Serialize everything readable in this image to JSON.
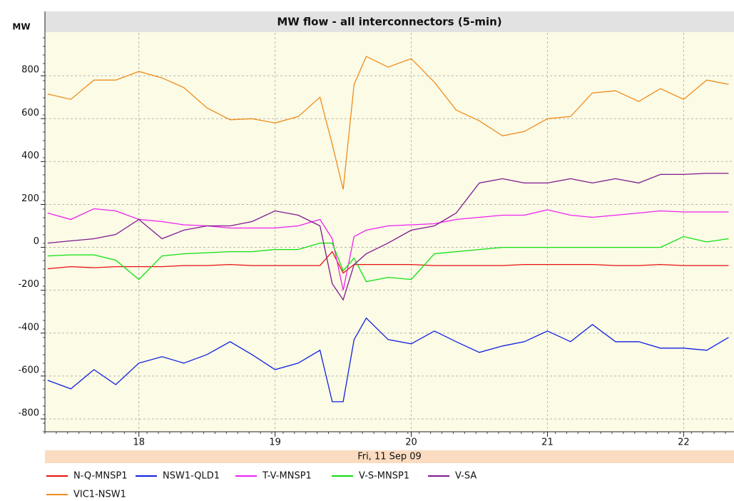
{
  "chart_data": {
    "type": "line",
    "title": "MW flow - all interconnectors (5-min)",
    "y_label": "MW",
    "x_label": "Fri, 11 Sep 09",
    "xlim": [
      17.31,
      22.37
    ],
    "xticks": [
      18,
      19,
      20,
      21,
      22
    ],
    "ylim": [
      -860,
      1100
    ],
    "yticks": [
      -800,
      -600,
      -400,
      -200,
      0,
      200,
      400,
      600,
      800
    ],
    "grid": true,
    "legend": "bottom",
    "x": [
      17.33,
      17.5,
      17.67,
      17.83,
      18,
      18.17,
      18.33,
      18.5,
      18.67,
      18.83,
      19,
      19.17,
      19.33,
      19.42,
      19.5,
      19.58,
      19.67,
      19.83,
      20,
      20.17,
      20.33,
      20.5,
      20.67,
      20.83,
      21,
      21.17,
      21.33,
      21.5,
      21.67,
      21.83,
      22,
      22.17,
      22.33
    ],
    "series": [
      {
        "name": "N-Q-MNSP1",
        "color": "#e81010",
        "values": [
          -100,
          -90,
          -95,
          -90,
          -90,
          -90,
          -85,
          -85,
          -80,
          -85,
          -85,
          -85,
          -85,
          -20,
          -120,
          -80,
          -80,
          -80,
          -80,
          -85,
          -85,
          -85,
          -85,
          -80,
          -80,
          -80,
          -80,
          -85,
          -85,
          -80,
          -85,
          -85,
          -85
        ]
      },
      {
        "name": "NSW1-QLD1",
        "color": "#1020e0",
        "values": [
          -620,
          -660,
          -570,
          -640,
          -540,
          -510,
          -540,
          -500,
          -440,
          -500,
          -570,
          -540,
          -480,
          -720,
          -720,
          -430,
          -330,
          -430,
          -450,
          -390,
          -440,
          -490,
          -460,
          -440,
          -390,
          -440,
          -360,
          -440,
          -440,
          -470,
          -470,
          -480,
          -420
        ]
      },
      {
        "name": "T-V-MNSP1",
        "color": "#f020f0",
        "values": [
          160,
          130,
          180,
          170,
          130,
          120,
          105,
          100,
          90,
          90,
          90,
          100,
          130,
          40,
          -200,
          50,
          80,
          100,
          105,
          110,
          130,
          140,
          150,
          150,
          175,
          150,
          140,
          150,
          160,
          170,
          165,
          165,
          165
        ]
      },
      {
        "name": "V-S-MNSP1",
        "color": "#10e010",
        "values": [
          -40,
          -35,
          -35,
          -60,
          -150,
          -40,
          -30,
          -25,
          -20,
          -20,
          -10,
          -10,
          20,
          20,
          -110,
          -50,
          -160,
          -140,
          -150,
          -30,
          -20,
          -10,
          0,
          0,
          0,
          0,
          0,
          0,
          0,
          0,
          50,
          25,
          40
        ]
      },
      {
        "name": "V-SA",
        "color": "#801890",
        "values": [
          20,
          30,
          40,
          60,
          130,
          40,
          80,
          100,
          100,
          120,
          170,
          150,
          100,
          -170,
          -245,
          -80,
          -30,
          20,
          80,
          100,
          160,
          300,
          320,
          300,
          300,
          320,
          300,
          320,
          300,
          340,
          340,
          345,
          345
        ]
      },
      {
        "name": "VIC1-NSW1",
        "color": "#f08c1c",
        "values": [
          715,
          690,
          780,
          780,
          820,
          790,
          745,
          650,
          595,
          600,
          580,
          610,
          700,
          480,
          270,
          760,
          890,
          840,
          880,
          770,
          640,
          590,
          520,
          540,
          600,
          610,
          720,
          730,
          680,
          740,
          690,
          780,
          760
        ]
      }
    ]
  }
}
